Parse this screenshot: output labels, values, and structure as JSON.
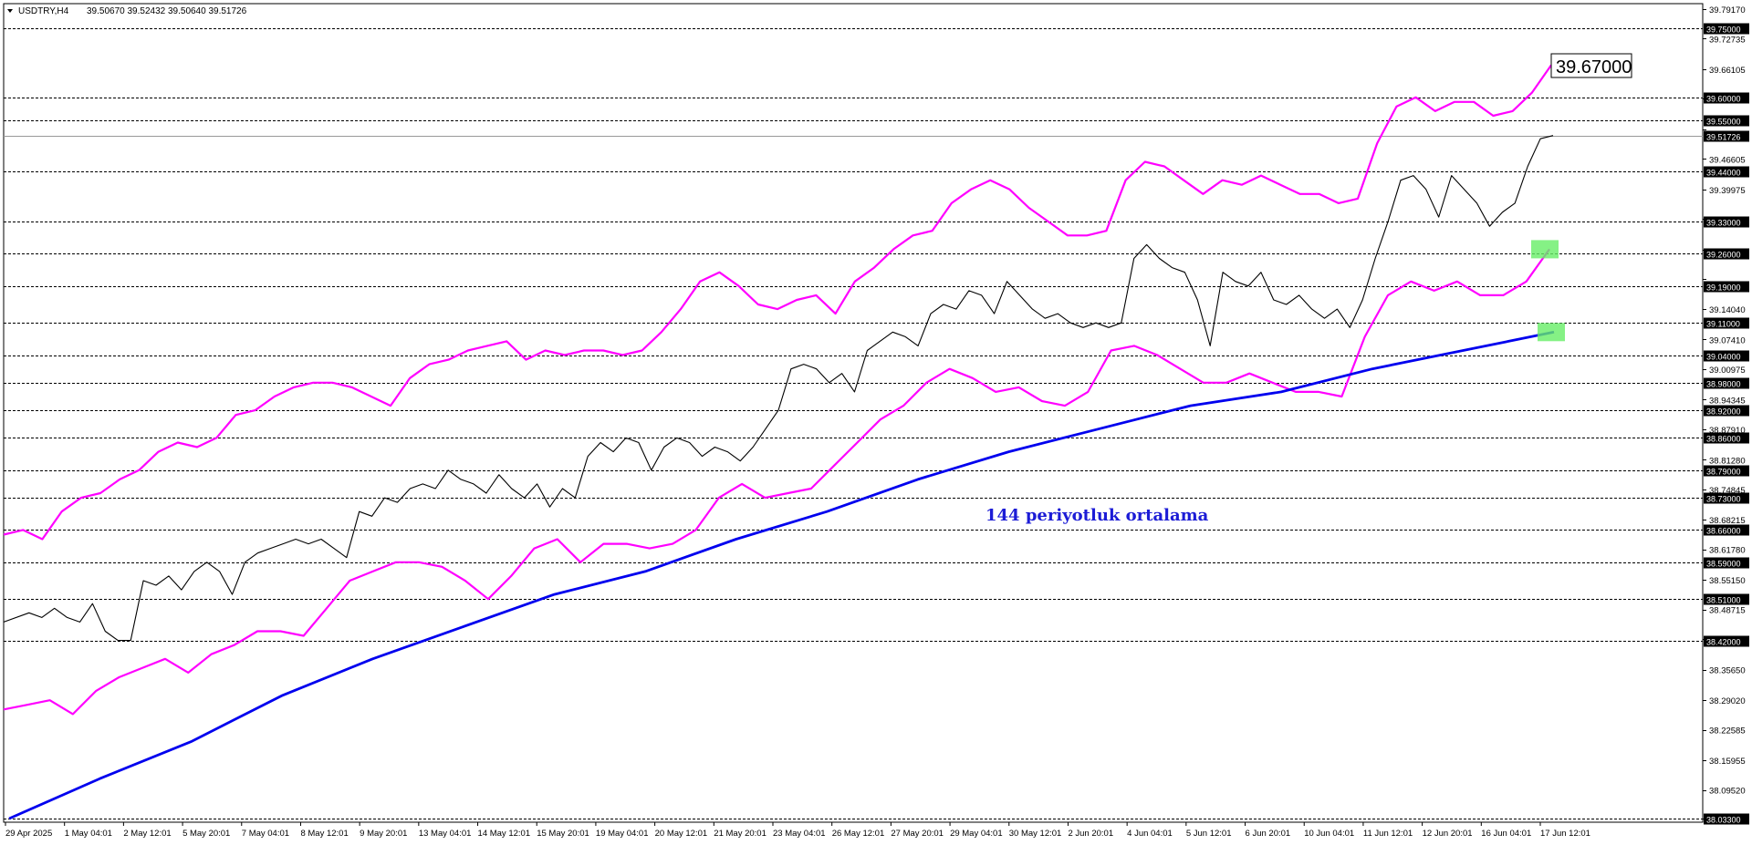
{
  "header": {
    "symbol": "USDTRY,H4",
    "ohlc": "39.50670 39.52432 39.50640 39.51726"
  },
  "annotation": {
    "ma_label": "144 periyotluk ortalama"
  },
  "callout": {
    "value": "39.67000"
  },
  "colors": {
    "price": "#000000",
    "bands": "#ff00ff",
    "ma": "#0000ee",
    "marker": "#66ee66",
    "grid": "#000000"
  },
  "chart_data": {
    "type": "line",
    "ylim": [
      38.033,
      39.7917
    ],
    "current_price": "39.51726",
    "y_ticks": [
      "39.79170",
      "39.72735",
      "39.66105",
      "39.59670",
      "39.53040",
      "39.46605",
      "39.39975",
      "39.33540",
      "39.26910",
      "39.20475",
      "39.14040",
      "39.07410",
      "39.00975",
      "38.94345",
      "38.87910",
      "38.81280",
      "38.74845",
      "38.68215",
      "38.61780",
      "38.55150",
      "38.48715",
      "38.42280",
      "38.35650",
      "38.29020",
      "38.22585",
      "38.15955",
      "38.09520",
      "38.03300"
    ],
    "level_labels": [
      "39.75000",
      "39.60000",
      "39.55000",
      "39.44000",
      "39.33000",
      "39.26000",
      "39.19000",
      "39.11000",
      "39.04000",
      "38.98000",
      "38.92000",
      "38.86000",
      "38.79000",
      "38.73000",
      "38.66000",
      "38.59000",
      "38.51000",
      "38.42000",
      "38.03300"
    ],
    "x_labels": [
      "29 Apr 2025",
      "1 May 04:01",
      "2 May 12:01",
      "5 May 20:01",
      "7 May 04:01",
      "8 May 12:01",
      "9 May 20:01",
      "13 May 04:01",
      "14 May 12:01",
      "15 May 20:01",
      "19 May 04:01",
      "20 May 12:01",
      "21 May 20:01",
      "23 May 04:01",
      "26 May 12:01",
      "27 May 20:01",
      "29 May 04:01",
      "30 May 12:01",
      "2 Jun 20:01",
      "4 Jun 04:01",
      "5 Jun 12:01",
      "6 Jun 20:01",
      "10 Jun 04:01",
      "11 Jun 12:01",
      "12 Jun 20:01",
      "16 Jun 04:01",
      "17 Jun 12:01"
    ],
    "series": [
      {
        "points": [
          [
            0,
            38.46
          ],
          [
            1,
            38.48
          ],
          [
            1.5,
            38.47
          ],
          [
            2,
            38.49
          ],
          [
            2.5,
            38.47
          ],
          [
            3,
            38.46
          ],
          [
            3.5,
            38.5
          ],
          [
            4,
            38.44
          ],
          [
            4.5,
            38.42
          ],
          [
            5,
            38.42
          ],
          [
            5.5,
            38.55
          ],
          [
            6,
            38.54
          ],
          [
            6.5,
            38.56
          ],
          [
            7,
            38.53
          ],
          [
            7.5,
            38.57
          ],
          [
            8,
            38.59
          ],
          [
            8.5,
            38.57
          ],
          [
            9,
            38.52
          ],
          [
            9.5,
            38.59
          ],
          [
            10,
            38.61
          ],
          [
            10.5,
            38.62
          ],
          [
            11,
            38.63
          ],
          [
            11.5,
            38.64
          ],
          [
            12,
            38.63
          ],
          [
            12.5,
            38.64
          ],
          [
            13,
            38.62
          ],
          [
            13.5,
            38.6
          ],
          [
            14,
            38.7
          ],
          [
            14.5,
            38.69
          ],
          [
            15,
            38.73
          ],
          [
            15.5,
            38.72
          ],
          [
            16,
            38.75
          ],
          [
            16.5,
            38.76
          ],
          [
            17,
            38.75
          ],
          [
            17.5,
            38.79
          ],
          [
            18,
            38.77
          ],
          [
            18.5,
            38.76
          ],
          [
            19,
            38.74
          ],
          [
            19.5,
            38.78
          ],
          [
            20,
            38.75
          ],
          [
            20.5,
            38.73
          ],
          [
            21,
            38.76
          ],
          [
            21.5,
            38.71
          ],
          [
            22,
            38.75
          ],
          [
            22.5,
            38.73
          ],
          [
            23,
            38.82
          ],
          [
            23.5,
            38.85
          ],
          [
            24,
            38.83
          ],
          [
            24.5,
            38.86
          ],
          [
            25,
            38.85
          ],
          [
            25.5,
            38.79
          ],
          [
            26,
            38.84
          ],
          [
            26.5,
            38.86
          ],
          [
            27,
            38.85
          ],
          [
            27.5,
            38.82
          ],
          [
            28,
            38.84
          ],
          [
            28.5,
            38.83
          ],
          [
            29,
            38.81
          ],
          [
            29.5,
            38.84
          ],
          [
            30,
            38.88
          ],
          [
            30.5,
            38.92
          ],
          [
            31,
            39.01
          ],
          [
            31.5,
            39.02
          ],
          [
            32,
            39.01
          ],
          [
            32.5,
            38.98
          ],
          [
            33,
            39.0
          ],
          [
            33.5,
            38.96
          ],
          [
            34,
            39.05
          ],
          [
            34.5,
            39.07
          ],
          [
            35,
            39.09
          ],
          [
            35.5,
            39.08
          ],
          [
            36,
            39.06
          ],
          [
            36.5,
            39.13
          ],
          [
            37,
            39.15
          ],
          [
            37.5,
            39.14
          ],
          [
            38,
            39.18
          ],
          [
            38.5,
            39.17
          ],
          [
            39,
            39.13
          ],
          [
            39.5,
            39.2
          ],
          [
            40,
            39.17
          ],
          [
            40.5,
            39.14
          ],
          [
            41,
            39.12
          ],
          [
            41.5,
            39.13
          ],
          [
            42,
            39.11
          ],
          [
            42.5,
            39.1
          ],
          [
            43,
            39.11
          ],
          [
            43.5,
            39.1
          ],
          [
            44,
            39.11
          ],
          [
            44.5,
            39.25
          ],
          [
            45,
            39.28
          ],
          [
            45.5,
            39.25
          ],
          [
            46,
            39.23
          ],
          [
            46.5,
            39.22
          ],
          [
            47,
            39.16
          ],
          [
            47.5,
            39.06
          ],
          [
            48,
            39.22
          ],
          [
            48.5,
            39.2
          ],
          [
            49,
            39.19
          ],
          [
            49.5,
            39.22
          ],
          [
            50,
            39.16
          ],
          [
            50.5,
            39.15
          ],
          [
            51,
            39.17
          ],
          [
            51.5,
            39.14
          ],
          [
            52,
            39.12
          ],
          [
            52.5,
            39.14
          ],
          [
            53,
            39.1
          ],
          [
            53.5,
            39.16
          ],
          [
            54,
            39.25
          ],
          [
            54.5,
            39.33
          ],
          [
            55,
            39.42
          ],
          [
            55.5,
            39.43
          ],
          [
            56,
            39.4
          ],
          [
            56.5,
            39.34
          ],
          [
            57,
            39.43
          ],
          [
            57.5,
            39.4
          ],
          [
            58,
            39.37
          ],
          [
            58.5,
            39.32
          ],
          [
            59,
            39.35
          ],
          [
            59.5,
            39.37
          ],
          [
            60,
            39.45
          ],
          [
            60.5,
            39.51
          ],
          [
            61,
            39.517
          ]
        ]
      },
      {
        "points": [
          [
            0,
            38.65
          ],
          [
            2,
            38.66
          ],
          [
            4,
            38.64
          ],
          [
            6,
            38.7
          ],
          [
            8,
            38.73
          ],
          [
            10,
            38.74
          ],
          [
            12,
            38.77
          ],
          [
            14,
            38.79
          ],
          [
            16,
            38.83
          ],
          [
            18,
            38.85
          ],
          [
            20,
            38.84
          ],
          [
            22,
            38.86
          ],
          [
            24,
            38.91
          ],
          [
            26,
            38.92
          ],
          [
            28,
            38.95
          ],
          [
            30,
            38.97
          ],
          [
            32,
            38.98
          ],
          [
            34,
            38.98
          ],
          [
            36,
            38.97
          ],
          [
            38,
            38.95
          ],
          [
            40,
            38.93
          ],
          [
            42,
            38.99
          ],
          [
            44,
            39.02
          ],
          [
            46,
            39.03
          ],
          [
            48,
            39.05
          ],
          [
            50,
            39.06
          ],
          [
            52,
            39.07
          ],
          [
            54,
            39.03
          ],
          [
            56,
            39.05
          ],
          [
            58,
            39.04
          ],
          [
            60,
            39.05
          ],
          [
            62,
            39.05
          ],
          [
            64,
            39.04
          ],
          [
            66,
            39.05
          ],
          [
            68,
            39.09
          ],
          [
            70,
            39.14
          ],
          [
            72,
            39.2
          ],
          [
            74,
            39.22
          ],
          [
            76,
            39.19
          ],
          [
            78,
            39.15
          ],
          [
            80,
            39.14
          ],
          [
            82,
            39.16
          ],
          [
            84,
            39.17
          ],
          [
            86,
            39.13
          ],
          [
            88,
            39.2
          ],
          [
            90,
            39.23
          ],
          [
            92,
            39.27
          ],
          [
            94,
            39.3
          ],
          [
            96,
            39.31
          ],
          [
            98,
            39.37
          ],
          [
            100,
            39.4
          ],
          [
            102,
            39.42
          ],
          [
            104,
            39.4
          ],
          [
            106,
            39.36
          ],
          [
            108,
            39.33
          ],
          [
            110,
            39.3
          ],
          [
            112,
            39.3
          ],
          [
            114,
            39.31
          ],
          [
            116,
            39.42
          ],
          [
            118,
            39.46
          ],
          [
            120,
            39.45
          ],
          [
            122,
            39.42
          ],
          [
            124,
            39.39
          ],
          [
            126,
            39.42
          ],
          [
            128,
            39.41
          ],
          [
            130,
            39.43
          ],
          [
            132,
            39.41
          ],
          [
            134,
            39.39
          ],
          [
            136,
            39.39
          ],
          [
            138,
            39.37
          ],
          [
            140,
            39.38
          ],
          [
            142,
            39.5
          ],
          [
            144,
            39.58
          ],
          [
            146,
            39.6
          ],
          [
            148,
            39.57
          ],
          [
            150,
            39.59
          ],
          [
            152,
            39.59
          ],
          [
            154,
            39.56
          ],
          [
            156,
            39.57
          ],
          [
            158,
            39.61
          ],
          [
            160,
            39.67
          ]
        ]
      },
      {
        "points": [
          [
            0,
            38.27
          ],
          [
            2,
            38.28
          ],
          [
            4,
            38.29
          ],
          [
            6,
            38.26
          ],
          [
            8,
            38.31
          ],
          [
            10,
            38.34
          ],
          [
            12,
            38.36
          ],
          [
            14,
            38.38
          ],
          [
            16,
            38.35
          ],
          [
            18,
            38.39
          ],
          [
            20,
            38.41
          ],
          [
            22,
            38.44
          ],
          [
            24,
            38.44
          ],
          [
            26,
            38.43
          ],
          [
            28,
            38.49
          ],
          [
            30,
            38.55
          ],
          [
            32,
            38.57
          ],
          [
            34,
            38.59
          ],
          [
            36,
            38.59
          ],
          [
            38,
            38.58
          ],
          [
            40,
            38.55
          ],
          [
            42,
            38.51
          ],
          [
            44,
            38.56
          ],
          [
            46,
            38.62
          ],
          [
            48,
            38.64
          ],
          [
            50,
            38.59
          ],
          [
            52,
            38.63
          ],
          [
            54,
            38.63
          ],
          [
            56,
            38.62
          ],
          [
            58,
            38.63
          ],
          [
            60,
            38.66
          ],
          [
            62,
            38.73
          ],
          [
            64,
            38.76
          ],
          [
            66,
            38.73
          ],
          [
            68,
            38.74
          ],
          [
            70,
            38.75
          ],
          [
            72,
            38.8
          ],
          [
            74,
            38.85
          ],
          [
            76,
            38.9
          ],
          [
            78,
            38.93
          ],
          [
            80,
            38.98
          ],
          [
            82,
            39.01
          ],
          [
            84,
            38.99
          ],
          [
            86,
            38.96
          ],
          [
            88,
            38.97
          ],
          [
            90,
            38.94
          ],
          [
            92,
            38.93
          ],
          [
            94,
            38.96
          ],
          [
            96,
            39.05
          ],
          [
            98,
            39.06
          ],
          [
            100,
            39.04
          ],
          [
            102,
            39.01
          ],
          [
            104,
            38.98
          ],
          [
            106,
            38.98
          ],
          [
            108,
            39.0
          ],
          [
            110,
            38.98
          ],
          [
            112,
            38.96
          ],
          [
            114,
            38.96
          ],
          [
            116,
            38.95
          ],
          [
            118,
            39.08
          ],
          [
            120,
            39.17
          ],
          [
            122,
            39.2
          ],
          [
            124,
            39.18
          ],
          [
            126,
            39.2
          ],
          [
            128,
            39.17
          ],
          [
            130,
            39.17
          ],
          [
            132,
            39.2
          ],
          [
            134,
            39.27
          ]
        ]
      },
      {
        "points": [
          [
            0,
            38.033
          ],
          [
            10,
            38.12
          ],
          [
            20,
            38.2
          ],
          [
            30,
            38.3
          ],
          [
            40,
            38.38
          ],
          [
            50,
            38.45
          ],
          [
            60,
            38.52
          ],
          [
            70,
            38.57
          ],
          [
            80,
            38.64
          ],
          [
            90,
            38.7
          ],
          [
            100,
            38.77
          ],
          [
            110,
            38.83
          ],
          [
            120,
            38.88
          ],
          [
            130,
            38.93
          ],
          [
            140,
            38.96
          ],
          [
            150,
            39.01
          ],
          [
            160,
            39.05
          ],
          [
            170,
            39.09
          ]
        ]
      }
    ],
    "grid": true
  }
}
